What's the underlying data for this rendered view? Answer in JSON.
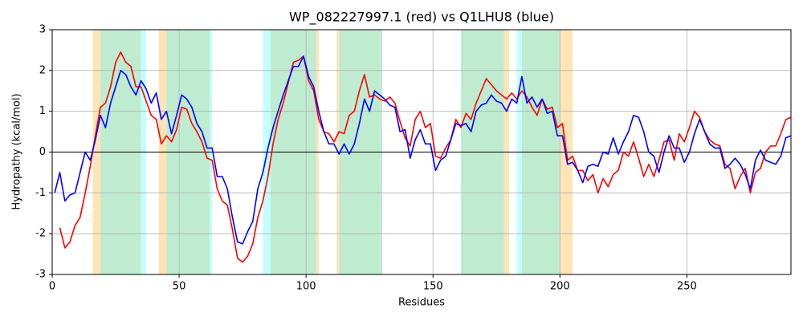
{
  "chart_data": {
    "type": "line",
    "title": "WP_082227997.1 (red) vs Q1LHU8 (blue)",
    "x_label": "Residues",
    "y_label": "Hydropathy (kcal/mol)",
    "xlim": [
      0,
      291
    ],
    "ylim": [
      -3,
      3
    ],
    "xticks": [
      0,
      50,
      100,
      150,
      200,
      250
    ],
    "yticks": [
      -3,
      -2,
      -1,
      0,
      1,
      2,
      3
    ],
    "grid": true,
    "spans": [
      {
        "start": 16,
        "end": 19,
        "color": "#ffe4b5"
      },
      {
        "start": 19,
        "end": 35,
        "color": "#bfecd0"
      },
      {
        "start": 35,
        "end": 37,
        "color": "#c4ffff"
      },
      {
        "start": 42,
        "end": 45,
        "color": "#ffe4b5"
      },
      {
        "start": 45,
        "end": 62,
        "color": "#bfecd0"
      },
      {
        "start": 62,
        "end": 63,
        "color": "#c4ffff"
      },
      {
        "start": 83,
        "end": 86,
        "color": "#c4ffff"
      },
      {
        "start": 86,
        "end": 104,
        "color": "#bfecd0"
      },
      {
        "start": 104,
        "end": 105,
        "color": "#ffe4b5"
      },
      {
        "start": 112,
        "end": 113,
        "color": "#ffe4b5"
      },
      {
        "start": 113,
        "end": 130,
        "color": "#bfecd0"
      },
      {
        "start": 161,
        "end": 178,
        "color": "#bfecd0"
      },
      {
        "start": 178,
        "end": 180,
        "color": "#ffe4b5"
      },
      {
        "start": 183,
        "end": 185,
        "color": "#c4ffff"
      },
      {
        "start": 185,
        "end": 200,
        "color": "#bfecd0"
      },
      {
        "start": 200,
        "end": 205,
        "color": "#ffe4b5"
      }
    ],
    "x": [
      1,
      3,
      5,
      7,
      9,
      11,
      13,
      15,
      17,
      19,
      21,
      23,
      25,
      27,
      29,
      31,
      33,
      35,
      37,
      39,
      41,
      43,
      45,
      47,
      49,
      51,
      53,
      55,
      57,
      59,
      61,
      63,
      65,
      67,
      69,
      71,
      73,
      75,
      77,
      79,
      81,
      83,
      85,
      87,
      89,
      91,
      93,
      95,
      97,
      99,
      101,
      103,
      105,
      107,
      109,
      111,
      113,
      115,
      117,
      119,
      121,
      123,
      125,
      127,
      129,
      131,
      133,
      135,
      137,
      139,
      141,
      143,
      145,
      147,
      149,
      151,
      153,
      155,
      157,
      159,
      161,
      163,
      165,
      167,
      169,
      171,
      173,
      175,
      177,
      179,
      181,
      183,
      185,
      187,
      189,
      191,
      193,
      195,
      197,
      199,
      201,
      203,
      205,
      207,
      209,
      211,
      213,
      215,
      217,
      219,
      221,
      223,
      225,
      227,
      229,
      231,
      233,
      235,
      237,
      239,
      241,
      243,
      245,
      247,
      249,
      251,
      253,
      255,
      257,
      259,
      261,
      263,
      265,
      267,
      269,
      271,
      273,
      275,
      277,
      279,
      281,
      283,
      285,
      287,
      289,
      291
    ],
    "series": [
      {
        "color": "#ff0000",
        "values": [
          null,
          -1.85,
          -2.35,
          -2.2,
          -1.8,
          -1.6,
          -1.0,
          -0.35,
          0.4,
          1.1,
          1.2,
          1.6,
          2.2,
          2.45,
          2.2,
          2.1,
          1.6,
          1.6,
          1.25,
          0.9,
          0.8,
          0.2,
          0.4,
          0.25,
          0.55,
          1.1,
          1.05,
          0.7,
          0.5,
          0.25,
          -0.15,
          -0.2,
          -0.9,
          -1.2,
          -1.3,
          -1.9,
          -2.6,
          -2.7,
          -2.55,
          -2.25,
          -1.6,
          -1.2,
          -0.6,
          0.2,
          0.8,
          1.2,
          1.7,
          2.2,
          2.25,
          2.35,
          1.75,
          1.5,
          0.8,
          0.5,
          0.45,
          0.25,
          0.5,
          0.45,
          0.9,
          1.0,
          1.5,
          1.9,
          1.35,
          1.4,
          1.3,
          1.25,
          1.35,
          1.2,
          0.75,
          0.35,
          0.15,
          0.8,
          1.0,
          0.6,
          0.7,
          -0.1,
          -0.15,
          0.1,
          0.3,
          0.8,
          0.6,
          0.95,
          0.8,
          1.2,
          1.5,
          1.8,
          1.65,
          1.5,
          1.4,
          1.3,
          1.45,
          1.3,
          1.5,
          1.35,
          1.1,
          0.9,
          1.3,
          1.05,
          1.1,
          0.6,
          0.7,
          -0.2,
          -0.1,
          -0.45,
          -0.45,
          -0.7,
          -0.55,
          -1.0,
          -0.65,
          -0.85,
          -0.55,
          -0.45,
          0.0,
          -0.1,
          0.25,
          -0.15,
          -0.6,
          -0.3,
          -0.6,
          -0.2,
          0.25,
          0.3,
          -0.2,
          0.45,
          0.25,
          0.6,
          1.0,
          0.85,
          0.5,
          0.3,
          0.2,
          0.15,
          -0.3,
          -0.4,
          -0.9,
          -0.6,
          -0.4,
          -1.0,
          -0.5,
          -0.4,
          0.0,
          0.15,
          0.15,
          0.45,
          0.8,
          0.85
        ]
      },
      {
        "color": "#0000ff",
        "values": [
          -1.0,
          -0.5,
          -1.2,
          -1.05,
          -1.0,
          -0.5,
          0.0,
          -0.2,
          0.3,
          0.9,
          0.6,
          1.2,
          1.6,
          2.0,
          1.9,
          1.6,
          1.4,
          1.75,
          1.55,
          1.2,
          1.45,
          0.8,
          1.0,
          0.45,
          0.9,
          1.4,
          1.3,
          1.1,
          0.7,
          0.5,
          0.1,
          0.1,
          -0.6,
          -0.6,
          -0.9,
          -1.6,
          -2.2,
          -2.25,
          -1.95,
          -1.7,
          -0.9,
          -0.5,
          0.1,
          0.6,
          1.0,
          1.4,
          1.75,
          2.1,
          2.1,
          2.35,
          1.85,
          1.6,
          1.0,
          0.5,
          0.2,
          0.2,
          -0.05,
          0.2,
          -0.05,
          0.2,
          0.7,
          1.3,
          1.0,
          1.5,
          1.4,
          1.3,
          1.15,
          1.1,
          0.5,
          0.55,
          -0.15,
          0.3,
          0.55,
          0.2,
          0.2,
          -0.45,
          -0.2,
          -0.1,
          0.3,
          0.7,
          0.65,
          0.7,
          0.5,
          1.0,
          1.15,
          1.2,
          1.4,
          1.25,
          1.2,
          1.0,
          1.3,
          1.2,
          1.85,
          1.2,
          1.35,
          1.1,
          1.3,
          0.95,
          1.0,
          0.4,
          0.4,
          -0.3,
          -0.25,
          -0.45,
          -0.75,
          -0.35,
          -0.3,
          -0.35,
          0.0,
          -0.05,
          0.35,
          -0.05,
          0.25,
          0.5,
          0.9,
          0.85,
          0.5,
          0.0,
          -0.1,
          -0.5,
          0.0,
          0.4,
          0.1,
          0.1,
          -0.25,
          0.0,
          0.45,
          0.8,
          0.5,
          0.2,
          0.1,
          0.1,
          -0.4,
          -0.3,
          -0.15,
          -0.3,
          -0.55,
          -0.9,
          -0.2,
          0.05,
          -0.2,
          -0.25,
          -0.3,
          -0.1,
          0.35,
          0.4
        ]
      }
    ]
  }
}
